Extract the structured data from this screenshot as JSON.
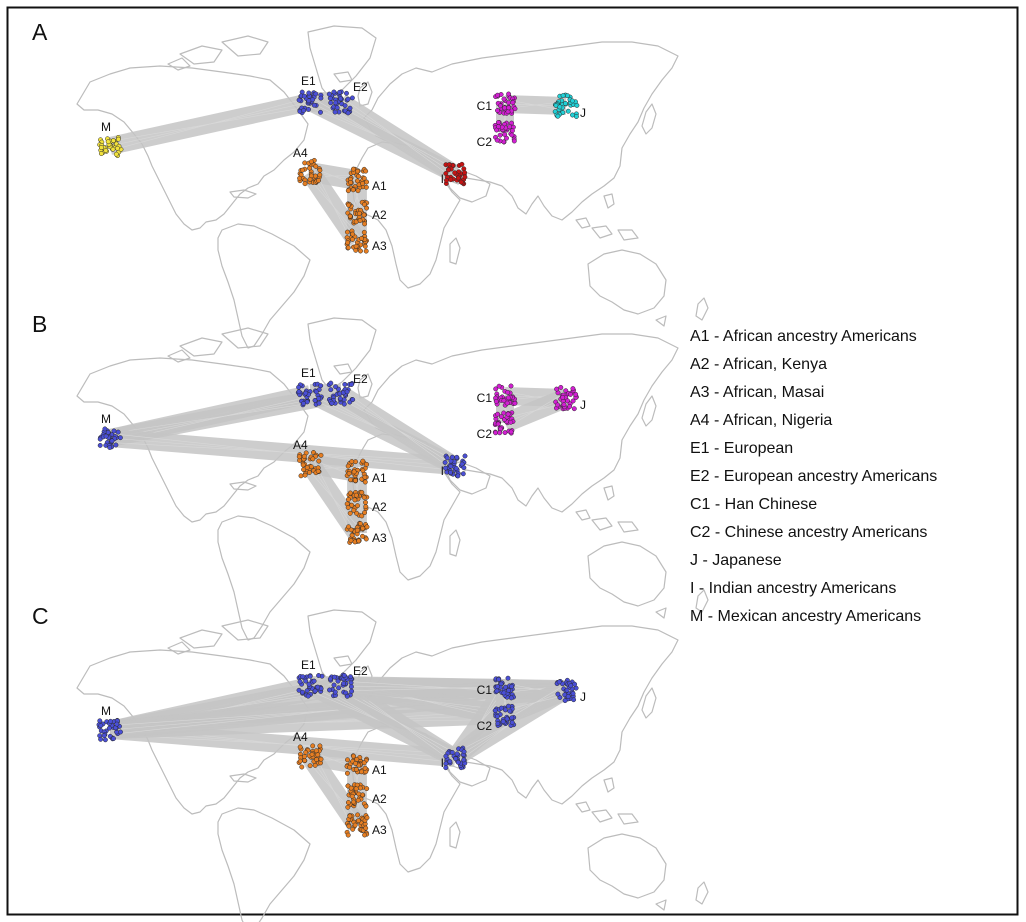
{
  "colors": {
    "land_outline": "#bcbcbc",
    "connection": "#c4c4c4",
    "frame": "#111111",
    "marker_edge": "#2a2a2a",
    "yellow": "#f2e23c",
    "blue": "#4a4fd6",
    "orange": "#e67e22",
    "magenta": "#d21fd2",
    "cyan": "#22d0d6",
    "red": "#c61414"
  },
  "population_labels": [
    "E1",
    "E2",
    "M",
    "A4",
    "A1",
    "A2",
    "A3",
    "I",
    "C1",
    "C2",
    "J"
  ],
  "panels": [
    {
      "letter": "A",
      "colors": {
        "M": "yellow",
        "E1": "blue",
        "E2": "blue",
        "A1": "orange",
        "A2": "orange",
        "A3": "orange",
        "A4": "orange",
        "C1": "magenta",
        "C2": "magenta",
        "J": "cyan",
        "I": "red"
      },
      "connections": [
        [
          "M",
          "E1"
        ],
        [
          "E1",
          "E2"
        ],
        [
          "E1",
          "I"
        ],
        [
          "E2",
          "I"
        ],
        [
          "A4",
          "A1"
        ],
        [
          "A1",
          "A2"
        ],
        [
          "A2",
          "A3"
        ],
        [
          "A4",
          "A3"
        ],
        [
          "C1",
          "C2"
        ],
        [
          "C1",
          "J"
        ]
      ]
    },
    {
      "letter": "B",
      "colors": {
        "M": "blue",
        "E1": "blue",
        "E2": "blue",
        "I": "blue",
        "A1": "orange",
        "A2": "orange",
        "A3": "orange",
        "A4": "orange",
        "C1": "magenta",
        "C2": "magenta",
        "J": "magenta"
      },
      "connections": [
        [
          "M",
          "E1"
        ],
        [
          "M",
          "E2"
        ],
        [
          "M",
          "I"
        ],
        [
          "E1",
          "E2"
        ],
        [
          "E1",
          "I"
        ],
        [
          "E2",
          "I"
        ],
        [
          "A4",
          "A1"
        ],
        [
          "A1",
          "A2"
        ],
        [
          "A2",
          "A3"
        ],
        [
          "A4",
          "A3"
        ],
        [
          "C1",
          "C2"
        ],
        [
          "C1",
          "J"
        ],
        [
          "C2",
          "J"
        ]
      ]
    },
    {
      "letter": "C",
      "colors": {
        "M": "blue",
        "E1": "blue",
        "E2": "blue",
        "I": "blue",
        "C1": "blue",
        "C2": "blue",
        "J": "blue",
        "A1": "orange",
        "A2": "orange",
        "A3": "orange",
        "A4": "orange"
      },
      "connections": [
        [
          "M",
          "E1"
        ],
        [
          "M",
          "E2"
        ],
        [
          "M",
          "I"
        ],
        [
          "M",
          "C1"
        ],
        [
          "M",
          "C2"
        ],
        [
          "M",
          "J"
        ],
        [
          "E1",
          "E2"
        ],
        [
          "E1",
          "I"
        ],
        [
          "E2",
          "I"
        ],
        [
          "E2",
          "C1"
        ],
        [
          "E2",
          "C2"
        ],
        [
          "E2",
          "J"
        ],
        [
          "I",
          "C1"
        ],
        [
          "I",
          "C2"
        ],
        [
          "I",
          "J"
        ],
        [
          "C1",
          "C2"
        ],
        [
          "C1",
          "J"
        ],
        [
          "C2",
          "J"
        ],
        [
          "A4",
          "A1"
        ],
        [
          "A1",
          "A2"
        ],
        [
          "A2",
          "A3"
        ],
        [
          "A4",
          "A3"
        ]
      ]
    }
  ],
  "legend": [
    "A1 - African ancestry Americans",
    "A2 - African, Kenya",
    "A3 - African, Masai",
    "A4 - African, Nigeria",
    "E1 - European",
    "E2 - European ancestry Americans",
    "C1 - Han Chinese",
    "C2 - Chinese ancestry Americans",
    "J - Japanese",
    "I - Indian ancestry Americans",
    "M - Mexican ancestry Americans"
  ]
}
